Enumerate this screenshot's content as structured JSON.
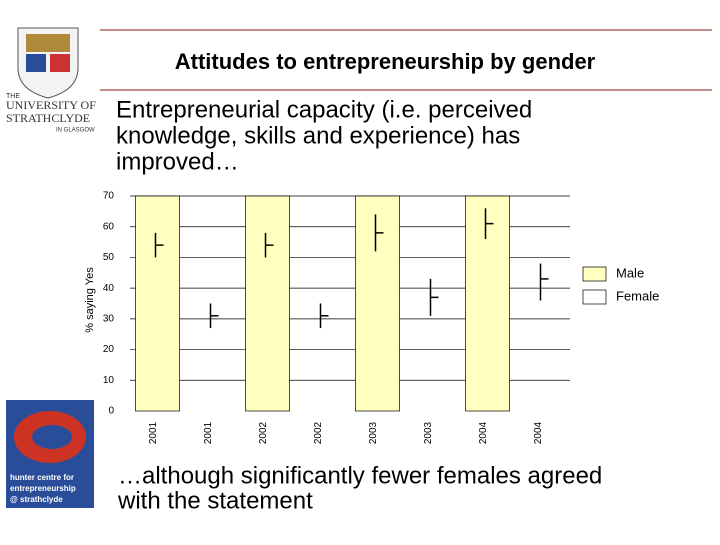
{
  "header": {
    "title": "Attitudes to entrepreneurship by gender",
    "logo_top": [
      "THE",
      "UNIVERSITY OF",
      "STRATHCLYDE",
      "IN GLASGOW"
    ]
  },
  "body": {
    "lines": [
      "Entrepreneurial capacity (i.e. perceived",
      "knowledge, skills and experience) has",
      "improved…"
    ]
  },
  "footer": {
    "lines": [
      "…although significantly fewer females agreed",
      "with the statement"
    ],
    "logo_bottom": [
      "hunter centre for",
      "entrepreneurship",
      "@ strathclyde"
    ]
  },
  "chart_data": {
    "type": "hilo",
    "ylabel": "% saying Yes",
    "categories": [
      "2001",
      "2001",
      "2002",
      "2002",
      "2003",
      "2003",
      "2004",
      "2004"
    ],
    "series": [
      {
        "name": "Male",
        "color": "#ffffc0",
        "values": [
          54,
          null,
          54,
          null,
          58,
          null,
          61,
          null
        ],
        "low": [
          50,
          null,
          50,
          null,
          52,
          null,
          56,
          null
        ],
        "high": [
          58,
          null,
          58,
          null,
          64,
          null,
          66,
          null
        ]
      },
      {
        "name": "Female",
        "color": "#ffffff",
        "values": [
          null,
          31,
          null,
          31,
          null,
          37,
          null,
          43
        ],
        "low": [
          null,
          27,
          null,
          27,
          null,
          31,
          null,
          36
        ],
        "high": [
          null,
          35,
          null,
          35,
          null,
          43,
          null,
          48
        ]
      }
    ],
    "ylim": [
      0,
      70
    ],
    "yticks": [
      0,
      10,
      20,
      30,
      40,
      50,
      60,
      70
    ],
    "grid": true,
    "legend": "right"
  }
}
